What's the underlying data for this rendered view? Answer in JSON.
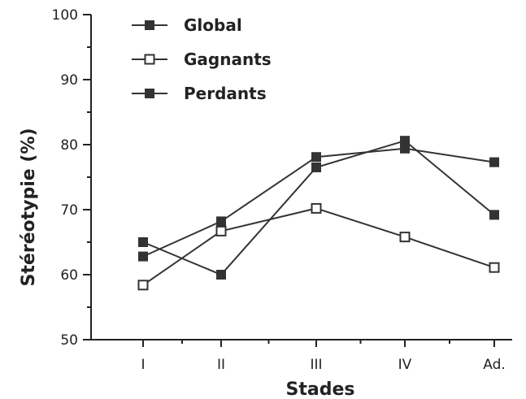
{
  "chart_data": {
    "type": "line",
    "xlabel": "Stades",
    "ylabel": "Stéréotypie (%)",
    "ylim": [
      50,
      100
    ],
    "yticks": [
      50,
      60,
      70,
      80,
      90,
      100
    ],
    "categories": [
      "I",
      "II",
      "III",
      "IV",
      "Ad."
    ],
    "legend_position": "top-left",
    "grid": false,
    "series": [
      {
        "name": "Global",
        "marker": "filled-square",
        "color": "#333333",
        "values": [
          62.8,
          68.2,
          78.1,
          79.4,
          77.3
        ]
      },
      {
        "name": "Gagnants",
        "marker": "open-square",
        "color": "#333333",
        "values": [
          58.4,
          66.7,
          70.2,
          65.8,
          61.1
        ]
      },
      {
        "name": "Perdants",
        "marker": "filled-square",
        "color": "#333333",
        "values": [
          65.0,
          60.0,
          76.5,
          80.6,
          69.2
        ]
      }
    ]
  }
}
